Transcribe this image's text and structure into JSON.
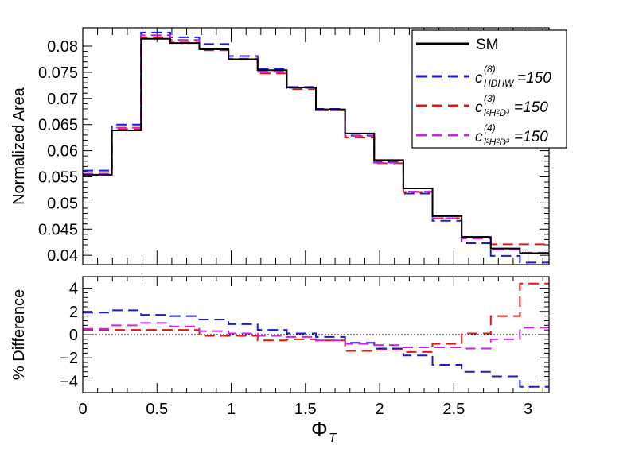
{
  "chart_data": {
    "type": "line",
    "style": "step-histogram",
    "xlabel": "Φ",
    "xlabel_sub": "T",
    "x_ticks": [
      "0",
      "0.5",
      "1",
      "1.5",
      "2",
      "2.5",
      "3"
    ],
    "x_tick_values": [
      0,
      0.5,
      1,
      1.5,
      2,
      2.5,
      3
    ],
    "xlim": [
      0,
      3.1416
    ],
    "bin_edges": [
      0,
      0.19635,
      0.3927,
      0.58905,
      0.7854,
      0.98175,
      1.1781,
      1.37445,
      1.5708,
      1.76715,
      1.9635,
      2.15985,
      2.3562,
      2.55255,
      2.7489,
      2.94525,
      3.1416
    ],
    "colors": {
      "sm": "#000000",
      "hdhw": "#1a1adc",
      "l2h2d3_3": "#e61414",
      "l2h2d3_4": "#cc22ee"
    },
    "panels": [
      {
        "name": "main",
        "ylabel": "Normalized Area",
        "ylim": [
          0.0382,
          0.0835
        ],
        "y_ticks": [
          "0.04",
          "0.045",
          "0.05",
          "0.055",
          "0.06",
          "0.065",
          "0.07",
          "0.075",
          "0.08"
        ],
        "y_tick_values": [
          0.04,
          0.045,
          0.05,
          0.055,
          0.06,
          0.065,
          0.07,
          0.075,
          0.08
        ],
        "legend_position": "top-right",
        "series": [
          {
            "key": "hdhw",
            "label": "c",
            "sup": "(8)",
            "sub": "HDHW",
            "tail": "=150",
            "dash": "13,7",
            "values": [
              0.0562,
              0.065,
              0.0826,
              0.0817,
              0.0804,
              0.0781,
              0.0756,
              0.0722,
              0.068,
              0.0629,
              0.0578,
              0.0518,
              0.0466,
              0.0423,
              0.0399,
              0.0386
            ]
          },
          {
            "key": "l2h2d3_3",
            "label": "c",
            "sup": "(3)",
            "sub": "l²H²D³",
            "tail": "=150",
            "dash": "13,7",
            "values": [
              0.0556,
              0.0641,
              0.0817,
              0.0807,
              0.0792,
              0.0775,
              0.0748,
              0.0718,
              0.0677,
              0.0625,
              0.0576,
              0.0521,
              0.0471,
              0.0435,
              0.0421,
              0.0421
            ]
          },
          {
            "key": "l2h2d3_4",
            "label": "c",
            "sup": "(4)",
            "sub": "l²H²D³",
            "tail": "=150",
            "dash": "13,7",
            "values": [
              0.0556,
              0.0644,
              0.0821,
              0.0812,
              0.0794,
              0.0776,
              0.0751,
              0.072,
              0.0677,
              0.0628,
              0.0577,
              0.0522,
              0.0471,
              0.0432,
              0.0411,
              0.0405
            ]
          },
          {
            "key": "sm",
            "label": "SM",
            "sup": "",
            "sub": "",
            "tail": "",
            "dash": "",
            "values": [
              0.0554,
              0.0639,
              0.0814,
              0.0806,
              0.0794,
              0.0775,
              0.0754,
              0.0721,
              0.0679,
              0.0633,
              0.0582,
              0.0528,
              0.0475,
              0.0435,
              0.0413,
              0.0404
            ]
          }
        ]
      },
      {
        "name": "ratio",
        "ylabel": "% Difference",
        "ylim": [
          -5.0,
          5.0
        ],
        "y_ticks": [
          "−4",
          "−2",
          "0",
          "2",
          "4"
        ],
        "y_tick_values": [
          -4,
          -2,
          0,
          2,
          4
        ],
        "reference_line": 0,
        "series": [
          {
            "key": "hdhw",
            "values": [
              1.9,
              2.1,
              1.7,
              1.6,
              1.3,
              0.9,
              0.4,
              0.1,
              -0.2,
              -0.7,
              -1.2,
              -1.8,
              -2.6,
              -3.2,
              -3.6,
              -4.5
            ]
          },
          {
            "key": "l2h2d3_3",
            "values": [
              0.4,
              0.4,
              0.4,
              0.4,
              -0.1,
              -0.1,
              -0.5,
              -0.4,
              -0.5,
              -1.4,
              -1.3,
              -1.5,
              -0.8,
              0.1,
              1.6,
              4.4
            ]
          },
          {
            "key": "l2h2d3_4",
            "values": [
              0.5,
              0.8,
              1.0,
              0.7,
              0.3,
              0.1,
              -0.1,
              -0.2,
              -0.5,
              -0.8,
              -0.9,
              -1.1,
              -1.1,
              -1.2,
              -0.4,
              0.6
            ]
          }
        ]
      }
    ]
  }
}
